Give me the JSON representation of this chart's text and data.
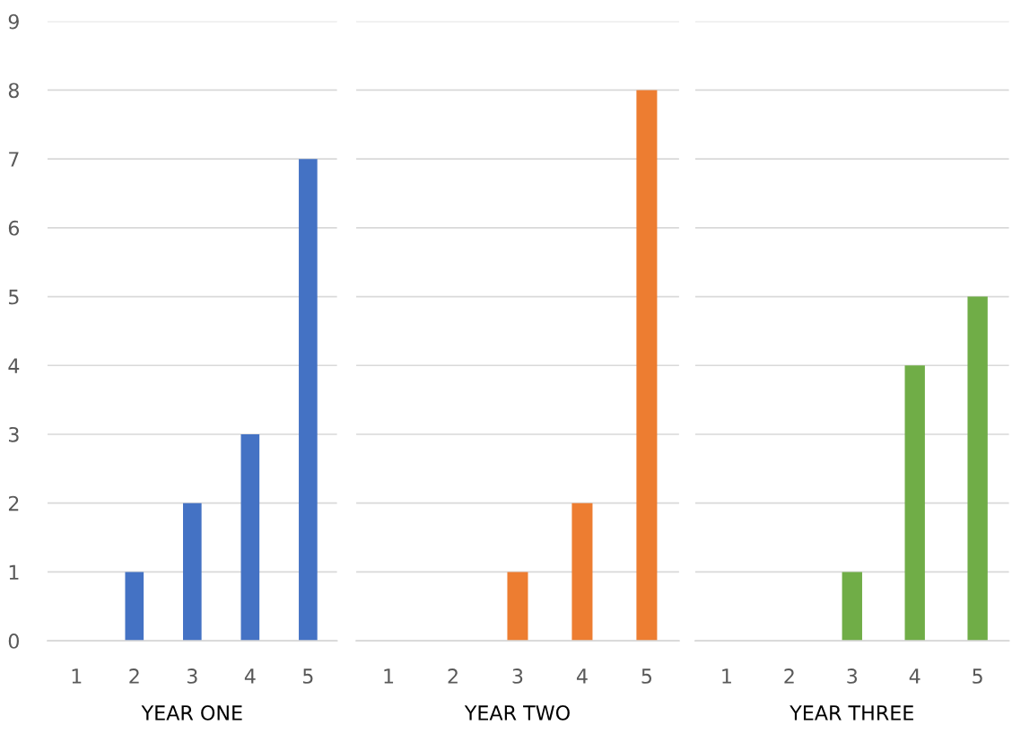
{
  "chart_data": [
    {
      "type": "bar",
      "categories": [
        "1",
        "2",
        "3",
        "4",
        "5"
      ],
      "values": [
        0,
        1,
        2,
        3,
        7
      ],
      "color": "#4472c4",
      "xlabel": "YEAR ONE",
      "ylim": [
        0,
        9
      ],
      "yticks": [
        0,
        1,
        2,
        3,
        4,
        5,
        6,
        7,
        8,
        9
      ],
      "grid": "y"
    },
    {
      "type": "bar",
      "categories": [
        "1",
        "2",
        "3",
        "4",
        "5"
      ],
      "values": [
        0,
        0,
        1,
        2,
        8
      ],
      "color": "#ed7d31",
      "xlabel": "YEAR TWO",
      "ylim": [
        0,
        9
      ],
      "yticks": [
        0,
        1,
        2,
        3,
        4,
        5,
        6,
        7,
        8,
        9
      ],
      "grid": "y",
      "tick_labels": "x"
    },
    {
      "type": "bar",
      "categories": [
        "1",
        "2",
        "3",
        "4",
        "5"
      ],
      "values": [
        0,
        0,
        1,
        4,
        5
      ],
      "color": "#70ad47",
      "xlabel": "YEAR THREE",
      "ylim": [
        0,
        9
      ],
      "yticks": [
        0,
        1,
        2,
        3,
        4,
        5,
        6,
        7,
        8,
        9
      ],
      "grid": "y",
      "tick_labels": "x"
    }
  ]
}
